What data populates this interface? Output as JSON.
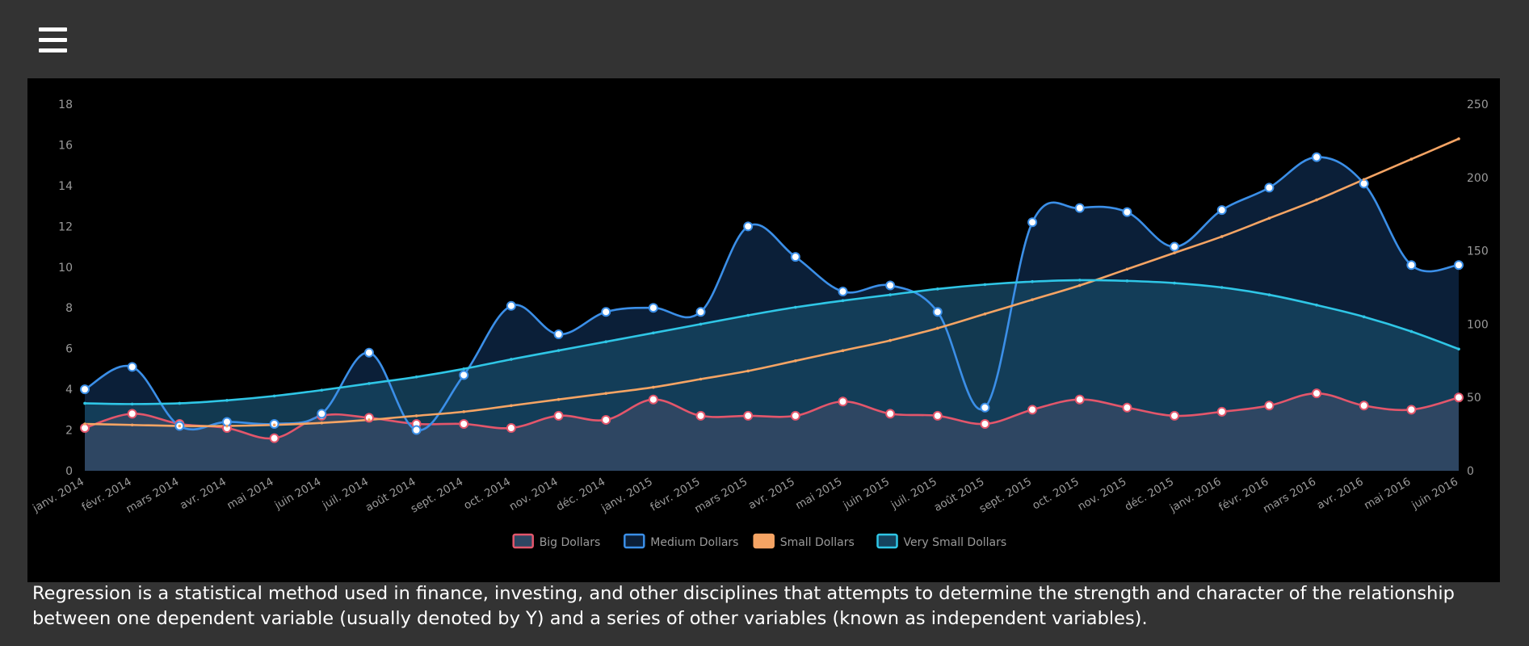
{
  "header": {
    "menu_icon": "hamburger-menu-icon"
  },
  "chart_data": {
    "type": "line",
    "categories": [
      "janv. 2014",
      "févr. 2014",
      "mars 2014",
      "avr. 2014",
      "mai 2014",
      "juin 2014",
      "juil. 2014",
      "août 2014",
      "sept. 2014",
      "oct. 2014",
      "nov. 2014",
      "déc. 2014",
      "janv. 2015",
      "févr. 2015",
      "mars 2015",
      "avr. 2015",
      "mai 2015",
      "juin 2015",
      "juil. 2015",
      "août 2015",
      "sept. 2015",
      "oct. 2015",
      "nov. 2015",
      "déc. 2015",
      "janv. 2016",
      "févr. 2016",
      "mars 2016",
      "avr. 2016",
      "mai 2016",
      "juin 2016"
    ],
    "title": "",
    "y_left": {
      "min": 0,
      "max": 18,
      "ticks": [
        "0",
        "2",
        "4",
        "6",
        "8",
        "10",
        "12",
        "14",
        "16",
        "18"
      ]
    },
    "y_right": {
      "min": 0,
      "max": 250,
      "ticks": [
        "0",
        "50",
        "100",
        "150",
        "200",
        "250"
      ]
    },
    "grid": false,
    "legend_position": "bottom",
    "series": [
      {
        "name": "Big Dollars",
        "axis": "left",
        "color": "#e3566b",
        "fill": "#2e4662",
        "values": [
          2.1,
          2.8,
          2.3,
          2.1,
          1.6,
          2.7,
          2.6,
          2.3,
          2.3,
          2.1,
          2.7,
          2.5,
          3.5,
          2.7,
          2.7,
          2.7,
          3.4,
          2.8,
          2.7,
          2.3,
          3.0,
          3.5,
          3.1,
          2.7,
          2.9,
          3.2,
          3.8,
          3.2,
          3.0,
          3.6
        ]
      },
      {
        "name": "Medium Dollars",
        "axis": "left",
        "color": "#3b8fe8",
        "fill": "#0b1f38",
        "values": [
          4.0,
          5.1,
          2.2,
          2.4,
          2.3,
          2.8,
          5.8,
          2.0,
          4.7,
          8.1,
          6.7,
          7.8,
          8.0,
          7.8,
          12.0,
          10.5,
          8.8,
          9.1,
          7.8,
          3.1,
          12.2,
          12.9,
          12.7,
          11.0,
          12.8,
          13.9,
          15.4,
          14.1,
          10.1,
          10.1
        ]
      },
      {
        "name": "Small Dollars",
        "axis": "left",
        "color": "#f5a464",
        "values": [
          2.3,
          2.25,
          2.2,
          2.2,
          2.25,
          2.35,
          2.5,
          2.7,
          2.9,
          3.2,
          3.5,
          3.8,
          4.1,
          4.5,
          4.9,
          5.4,
          5.9,
          6.4,
          7.0,
          7.7,
          8.4,
          9.1,
          9.9,
          10.7,
          11.5,
          12.4,
          13.3,
          14.3,
          15.3,
          16.3
        ]
      },
      {
        "name": "Very Small Dollars",
        "axis": "right",
        "color": "#2fc6e6",
        "fill": "#15435e",
        "values": [
          46,
          45.5,
          46,
          48,
          51,
          55,
          59.5,
          64,
          69.5,
          76,
          82,
          88,
          94,
          100,
          106,
          111.5,
          116,
          120,
          124,
          127,
          129,
          130,
          129.5,
          128,
          125,
          120,
          113,
          105,
          95,
          83
        ]
      }
    ]
  },
  "description": "Regression is a statistical method used in finance, investing, and other disciplines that attempts to determine the strength and character of the relationship between one dependent variable (usually denoted by Y) and a series of other variables (known as independent variables)."
}
